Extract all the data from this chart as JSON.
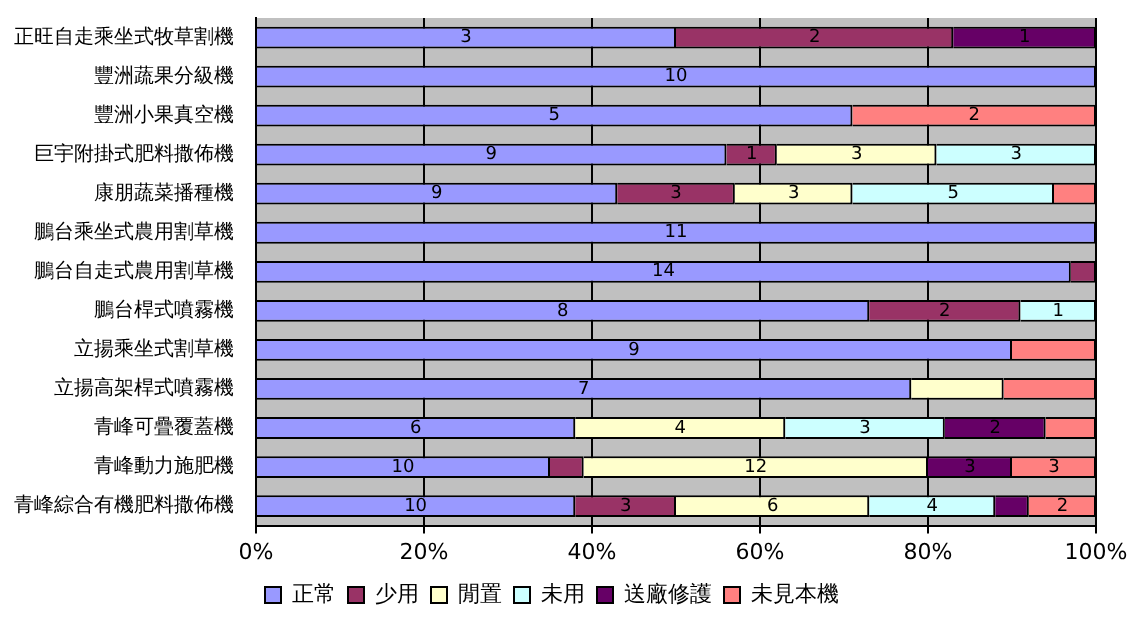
{
  "chart_data": {
    "type": "bar",
    "orientation": "horizontal",
    "stacked": true,
    "categories": [
      "正旺自走乘坐式牧草割機",
      "豐洲蔬果分級機",
      "豐洲小果真空機",
      "巨宇附掛式肥料撒佈機",
      "康朋蔬菜播種機",
      "鵬台乘坐式農用割草機",
      "鵬台自走式農用割草機",
      "鵬台桿式噴霧機",
      "立揚乘坐式割草機",
      "立揚高架桿式噴霧機",
      "青峰可疊覆蓋機",
      "青峰動力施肥機",
      "青峰綜合有機肥料撒佈機"
    ],
    "series": [
      {
        "name": "正常",
        "color": "#9999ff",
        "values": [
          50,
          100,
          71,
          56,
          43,
          100,
          97,
          73,
          90,
          78,
          38,
          35,
          38
        ]
      },
      {
        "name": "少用",
        "color": "#993366",
        "values": [
          33,
          null,
          null,
          6,
          14,
          null,
          3,
          18,
          null,
          null,
          null,
          4,
          12
        ]
      },
      {
        "name": "閒置",
        "color": "#ffffcc",
        "values": [
          null,
          null,
          null,
          19,
          14,
          null,
          null,
          null,
          null,
          11,
          25,
          41,
          23
        ]
      },
      {
        "name": "未用",
        "color": "#ccffff",
        "values": [
          null,
          null,
          null,
          19,
          24,
          null,
          null,
          9,
          null,
          null,
          19,
          null,
          15
        ]
      },
      {
        "name": "送廠修護",
        "color": "#660066",
        "values": [
          17,
          null,
          null,
          null,
          null,
          null,
          null,
          null,
          null,
          null,
          12,
          10,
          4
        ]
      },
      {
        "name": "未見本機",
        "color": "#ff8080",
        "values": [
          null,
          null,
          29,
          null,
          5,
          null,
          null,
          null,
          10,
          11,
          6,
          10,
          8
        ]
      }
    ],
    "annotations": [
      {
        "text": "3",
        "x": 25,
        "y": "正旺自走乘坐式牧草割機"
      },
      {
        "text": "2",
        "x": 66.5,
        "y": "正旺自走乘坐式牧草割機"
      },
      {
        "text": "1",
        "x": 91.5,
        "y": "正旺自走乘坐式牧草割機"
      },
      {
        "text": "10",
        "x": 50,
        "y": "豐洲蔬果分級機"
      },
      {
        "text": "5",
        "x": 35.5,
        "y": "豐洲小果真空機"
      },
      {
        "text": "2",
        "x": 85.5,
        "y": "豐洲小果真空機"
      },
      {
        "text": "9",
        "x": 28,
        "y": "巨宇附掛式肥料撒佈機"
      },
      {
        "text": "1",
        "x": 59,
        "y": "巨宇附掛式肥料撒佈機"
      },
      {
        "text": "3",
        "x": 71.5,
        "y": "巨宇附掛式肥料撒佈機"
      },
      {
        "text": "3",
        "x": 90.5,
        "y": "巨宇附掛式肥料撒佈機"
      },
      {
        "text": "9",
        "x": 21.5,
        "y": "康朋蔬菜播種機"
      },
      {
        "text": "3",
        "x": 50,
        "y": "康朋蔬菜播種機"
      },
      {
        "text": "3",
        "x": 64,
        "y": "康朋蔬菜播種機"
      },
      {
        "text": "5",
        "x": 83,
        "y": "康朋蔬菜播種機"
      },
      {
        "text": "11",
        "x": 50,
        "y": "鵬台乘坐式農用割草機"
      },
      {
        "text": "14",
        "x": 48.5,
        "y": "鵬台自走式農用割草機"
      },
      {
        "text": "8",
        "x": 36.5,
        "y": "鵬台桿式噴霧機"
      },
      {
        "text": "2",
        "x": 82,
        "y": "鵬台桿式噴霧機"
      },
      {
        "text": "1",
        "x": 95.5,
        "y": "鵬台桿式噴霧機"
      },
      {
        "text": "9",
        "x": 45,
        "y": "立揚乘坐式割草機"
      },
      {
        "text": "7",
        "x": 39,
        "y": "立揚高架桿式噴霧機"
      },
      {
        "text": "6",
        "x": 19,
        "y": "青峰可疊覆蓋機"
      },
      {
        "text": "4",
        "x": 50.5,
        "y": "青峰可疊覆蓋機"
      },
      {
        "text": "3",
        "x": 72.5,
        "y": "青峰可疊覆蓋機"
      },
      {
        "text": "2",
        "x": 88,
        "y": "青峰可疊覆蓋機"
      },
      {
        "text": "10",
        "x": 17.5,
        "y": "青峰動力施肥機"
      },
      {
        "text": "12",
        "x": 59.5,
        "y": "青峰動力施肥機"
      },
      {
        "text": "3",
        "x": 85,
        "y": "青峰動力施肥機"
      },
      {
        "text": "3",
        "x": 95,
        "y": "青峰動力施肥機"
      },
      {
        "text": "10",
        "x": 19,
        "y": "青峰綜合有機肥料撒佈機"
      },
      {
        "text": "3",
        "x": 44,
        "y": "青峰綜合有機肥料撒佈機"
      },
      {
        "text": "6",
        "x": 61.5,
        "y": "青峰綜合有機肥料撒佈機"
      },
      {
        "text": "4",
        "x": 80.5,
        "y": "青峰綜合有機肥料撒佈機"
      },
      {
        "text": "2",
        "x": 96,
        "y": "青峰綜合有機肥料撒佈機"
      }
    ],
    "xlim": [
      0,
      100
    ],
    "xticks": [
      {
        "value": 0,
        "label": "0%"
      },
      {
        "value": 20,
        "label": "20%"
      },
      {
        "value": 40,
        "label": "40%"
      },
      {
        "value": 60,
        "label": "60%"
      },
      {
        "value": 80,
        "label": "80%"
      },
      {
        "value": 100,
        "label": "100%"
      }
    ],
    "grid": "x",
    "legend": "bottom"
  }
}
